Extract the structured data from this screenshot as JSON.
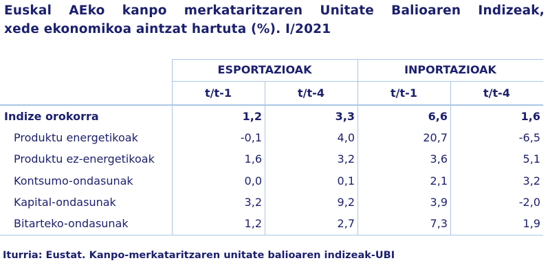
{
  "header": {
    "title": [
      "Euskal AEko kanpo merkataritzaren Unitate Balioaren Indizeak,",
      "xede ekonomikoa aintzat hartuta (%). I/2021"
    ]
  },
  "table": {
    "groups": [
      "ESPORTAZIOAK",
      "INPORTAZIOAK"
    ],
    "columns": [
      "t/t-1",
      "t/t-4",
      "t/t-1",
      "t/t-4"
    ],
    "rows": [
      {
        "label": "Indize orokorra",
        "values": [
          "1,2",
          "3,3",
          "6,6",
          "1,6"
        ]
      },
      {
        "label": "Produktu energetikoak",
        "values": [
          "-0,1",
          "4,0",
          "20,7",
          "-6,5"
        ]
      },
      {
        "label": "Produktu ez-energetikoak",
        "values": [
          "1,6",
          "3,2",
          "3,6",
          "5,1"
        ]
      },
      {
        "label": "Kontsumo-ondasunak",
        "values": [
          "0,0",
          "0,1",
          "2,1",
          "3,2"
        ]
      },
      {
        "label": "Kapital-ondasunak",
        "values": [
          "3,2",
          "9,2",
          "3,9",
          "-2,0"
        ]
      },
      {
        "label": "Bitarteko-ondasunak",
        "values": [
          "1,2",
          "2,7",
          "7,3",
          "1,9"
        ]
      }
    ]
  },
  "footer": {
    "source": "Iturria: Eustat. Kanpo-merkataritzaren unitate balioaren indizeak-UBI"
  }
}
